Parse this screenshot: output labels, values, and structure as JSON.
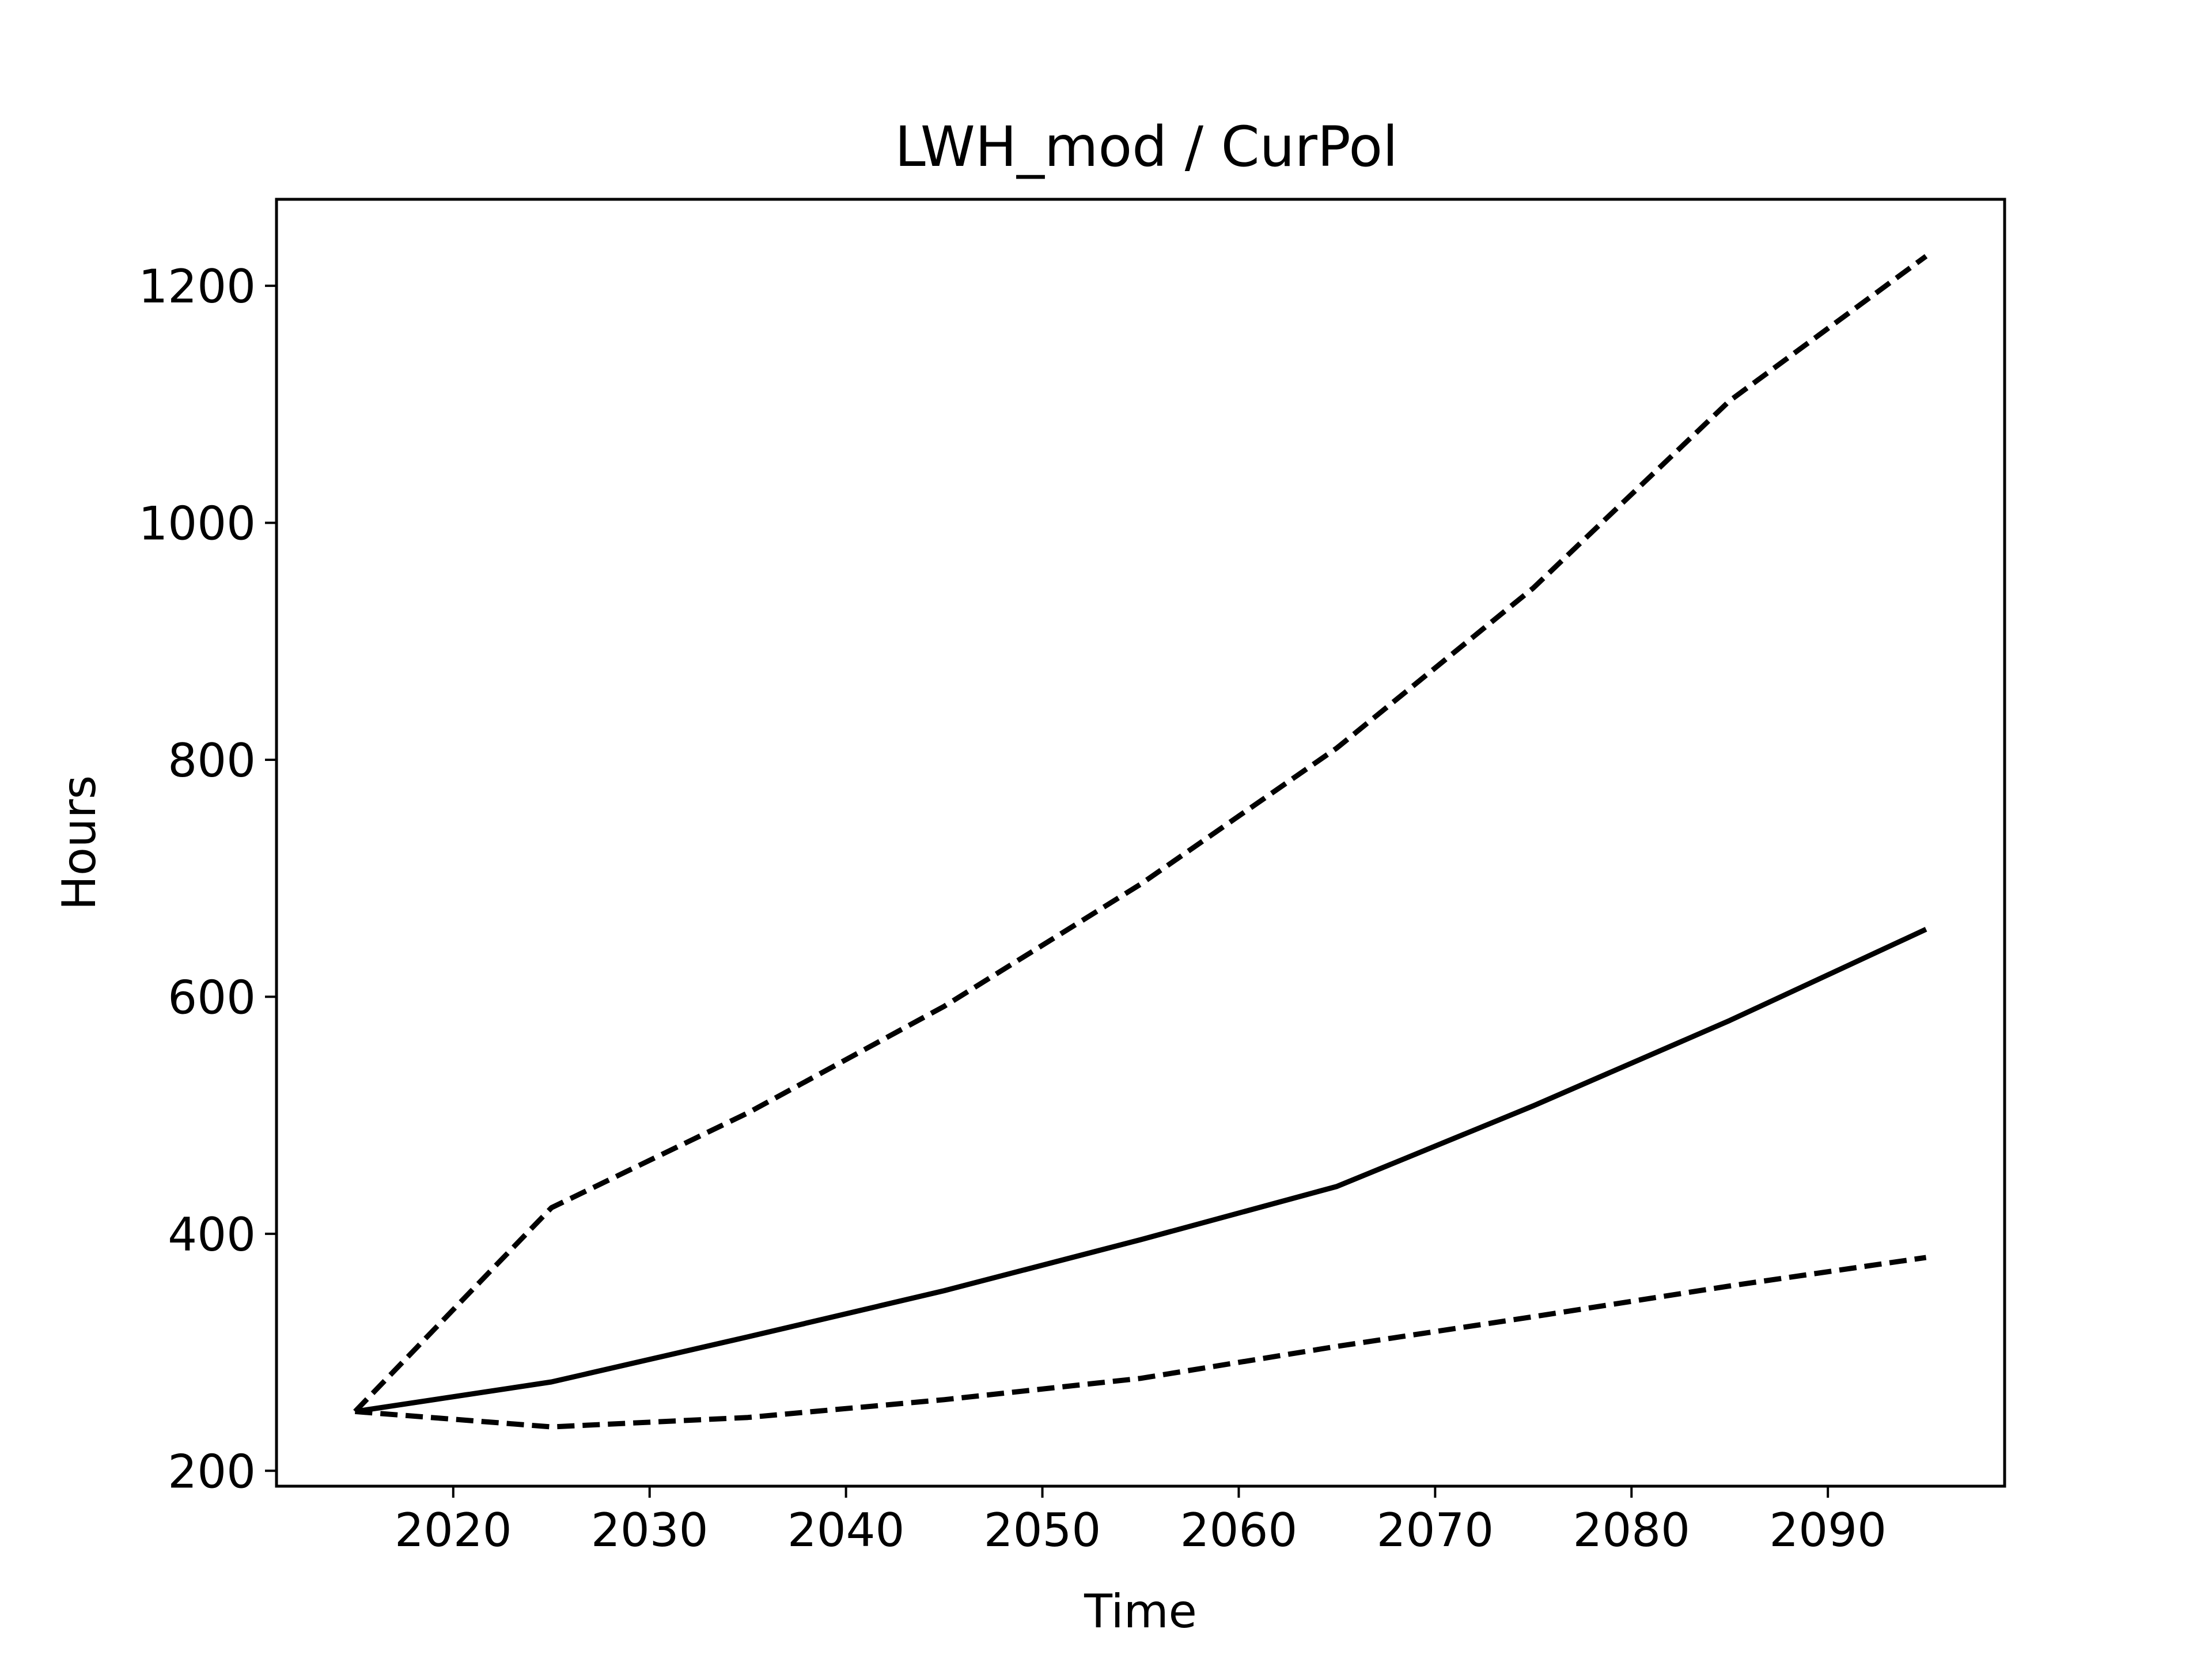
{
  "chart_data": {
    "type": "line",
    "title": "LWH_mod / CurPol",
    "xlabel": "Time",
    "ylabel": "Hours",
    "xlim": [
      2011,
      2099
    ],
    "ylim": [
      187,
      1273
    ],
    "xticks": [
      2020,
      2030,
      2040,
      2050,
      2060,
      2070,
      2080,
      2090
    ],
    "yticks": [
      200,
      400,
      600,
      800,
      1000,
      1200
    ],
    "grid": false,
    "legend": false,
    "x": [
      2015,
      2025,
      2035,
      2045,
      2055,
      2065,
      2075,
      2085,
      2095
    ],
    "series": [
      {
        "style": "dashed",
        "color": "#000000",
        "values": [
          250,
          422,
          502,
          592,
          695,
          810,
          945,
          1103,
          1225
        ]
      },
      {
        "style": "solid",
        "color": "#000000",
        "values": [
          250,
          275,
          313,
          352,
          395,
          440,
          508,
          580,
          657
        ]
      },
      {
        "style": "dashed",
        "color": "#000000",
        "values": [
          250,
          237,
          245,
          260,
          278,
          305,
          330,
          356,
          380
        ]
      }
    ]
  }
}
